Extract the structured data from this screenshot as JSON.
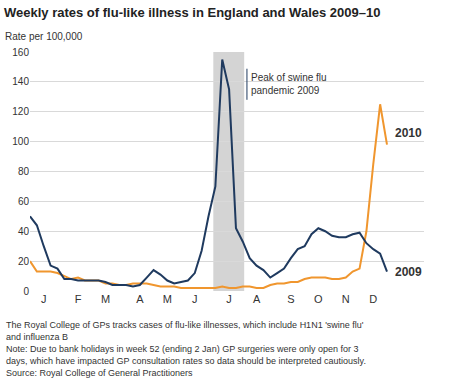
{
  "chart_data": {
    "type": "line",
    "title": "Weekly rates of flu-like illness in England and Wales 2009–10",
    "y_label": "Rate per 100,000",
    "categories": [
      null,
      null,
      "J",
      null,
      null,
      null,
      null,
      "F",
      null,
      null,
      null,
      "M",
      null,
      null,
      null,
      null,
      "A",
      null,
      null,
      null,
      "M",
      null,
      null,
      null,
      "J",
      null,
      null,
      null,
      null,
      "J",
      null,
      null,
      null,
      "A",
      null,
      null,
      null,
      null,
      "S",
      null,
      null,
      null,
      "O",
      null,
      null,
      null,
      "N",
      null,
      null,
      null,
      "D",
      null,
      null
    ],
    "series": [
      {
        "name": "2010",
        "color": "#f0962e",
        "values": [
          20,
          13,
          13,
          13,
          12,
          10,
          8,
          9,
          7,
          7,
          7,
          5,
          5,
          4,
          4,
          5,
          5,
          5,
          4,
          3,
          3,
          3,
          2,
          2,
          2,
          2,
          2,
          2,
          3,
          2,
          2,
          3,
          3,
          2,
          2,
          4,
          5,
          5,
          6,
          6,
          8,
          9,
          9,
          9,
          8,
          8,
          9,
          13,
          15,
          40,
          85,
          125,
          98
        ]
      },
      {
        "name": "2009",
        "color": "#1f3a5f",
        "values": [
          50,
          44,
          30,
          17,
          15,
          8,
          8,
          7,
          7,
          7,
          7,
          6,
          4,
          4,
          4,
          3,
          4,
          9,
          14,
          11,
          7,
          5,
          6,
          7,
          12,
          27,
          50,
          70,
          155,
          135,
          42,
          33,
          22,
          17,
          14,
          9,
          12,
          15,
          22,
          28,
          30,
          38,
          42,
          40,
          37,
          36,
          36,
          38,
          39,
          32,
          28,
          25,
          13
        ]
      }
    ],
    "ylim": [
      0,
      160
    ],
    "yticks": [
      0,
      20,
      40,
      60,
      80,
      100,
      120,
      140,
      160
    ],
    "grid": true,
    "annotations": [
      {
        "text": "Peak of swine flu\npandemic 2009",
        "x_start": 26.7,
        "x_end": 31.2
      }
    ],
    "notes": [
      "The Royal College of GPs tracks cases of flu-like illnesses, which include H1N1 'swine flu'\nand influenza B",
      "Note: Due to bank holidays in week 52 (ending 2 Jan) GP surgeries were only open for 3\ndays, which have impacted GP consultation rates so data should be interpreted cautiously.",
      "Source: Royal College of General Practitioners"
    ]
  }
}
